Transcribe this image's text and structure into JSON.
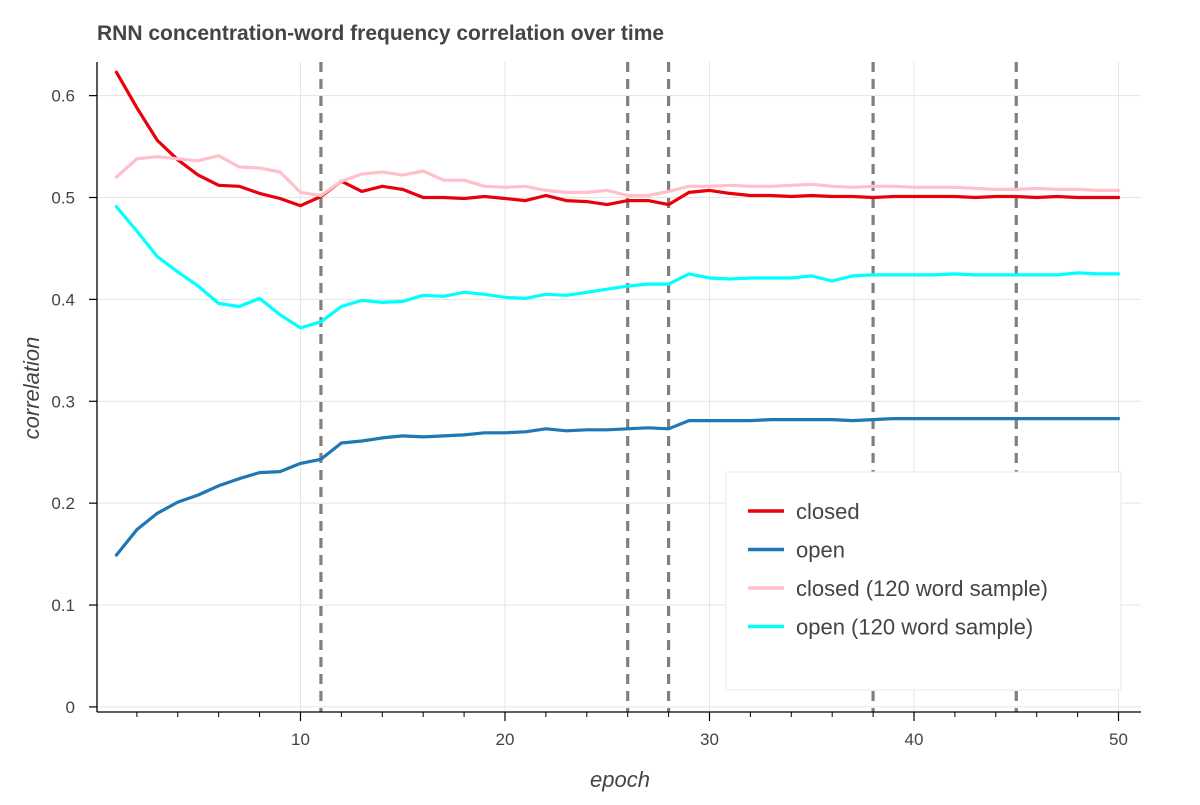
{
  "chart_data": {
    "type": "line",
    "title": "RNN concentration-word frequency correlation over time",
    "xlabel": "epoch",
    "ylabel": "correlation",
    "xlim": [
      0.05,
      51.1
    ],
    "ylim": [
      -0.005,
      0.633
    ],
    "xticks": [
      10,
      20,
      30,
      40,
      50
    ],
    "xticks_minor": [
      2,
      4,
      6,
      8,
      12,
      14,
      16,
      18,
      22,
      24,
      26,
      28,
      32,
      34,
      36,
      38,
      42,
      44,
      46,
      48
    ],
    "yticks": [
      0,
      0.1,
      0.2,
      0.3,
      0.4,
      0.5,
      0.6
    ],
    "ytick_labels": [
      "0",
      "0.1",
      "0.2",
      "0.3",
      "0.4",
      "0.5",
      "0.6"
    ],
    "grid": true,
    "legend_position": "bottom-right",
    "vlines": [
      11,
      26,
      28,
      38,
      45
    ],
    "x": [
      1,
      2,
      3,
      4,
      5,
      6,
      7,
      8,
      9,
      10,
      11,
      12,
      13,
      14,
      15,
      16,
      17,
      18,
      19,
      20,
      21,
      22,
      23,
      24,
      25,
      26,
      27,
      28,
      29,
      30,
      31,
      32,
      33,
      34,
      35,
      36,
      37,
      38,
      39,
      40,
      41,
      42,
      43,
      44,
      45,
      46,
      47,
      48,
      49,
      50
    ],
    "series": [
      {
        "name": "closed",
        "color": "#e8000b",
        "values": [
          0.623,
          0.588,
          0.556,
          0.537,
          0.522,
          0.512,
          0.511,
          0.504,
          0.499,
          0.492,
          0.501,
          0.516,
          0.506,
          0.511,
          0.508,
          0.5,
          0.5,
          0.499,
          0.501,
          0.499,
          0.497,
          0.502,
          0.497,
          0.496,
          0.493,
          0.497,
          0.497,
          0.493,
          0.505,
          0.507,
          0.504,
          0.502,
          0.502,
          0.501,
          0.502,
          0.501,
          0.501,
          0.5,
          0.501,
          0.501,
          0.501,
          0.501,
          0.5,
          0.501,
          0.501,
          0.5,
          0.501,
          0.5,
          0.5,
          0.5
        ]
      },
      {
        "name": "open",
        "color": "#1f77b4",
        "values": [
          0.149,
          0.174,
          0.19,
          0.201,
          0.208,
          0.217,
          0.224,
          0.23,
          0.231,
          0.239,
          0.243,
          0.259,
          0.261,
          0.264,
          0.266,
          0.265,
          0.266,
          0.267,
          0.269,
          0.269,
          0.27,
          0.273,
          0.271,
          0.272,
          0.272,
          0.273,
          0.274,
          0.273,
          0.281,
          0.281,
          0.281,
          0.281,
          0.282,
          0.282,
          0.282,
          0.282,
          0.281,
          0.282,
          0.283,
          0.283,
          0.283,
          0.283,
          0.283,
          0.283,
          0.283,
          0.283,
          0.283,
          0.283,
          0.283,
          0.283
        ]
      },
      {
        "name": "closed (120 word sample)",
        "color": "#ffc0cb",
        "values": [
          0.52,
          0.538,
          0.54,
          0.538,
          0.536,
          0.541,
          0.53,
          0.529,
          0.525,
          0.505,
          0.502,
          0.516,
          0.523,
          0.525,
          0.522,
          0.526,
          0.517,
          0.517,
          0.511,
          0.51,
          0.511,
          0.507,
          0.505,
          0.505,
          0.507,
          0.502,
          0.502,
          0.506,
          0.511,
          0.511,
          0.512,
          0.511,
          0.511,
          0.512,
          0.513,
          0.511,
          0.51,
          0.511,
          0.511,
          0.51,
          0.51,
          0.51,
          0.509,
          0.508,
          0.508,
          0.509,
          0.508,
          0.508,
          0.507,
          0.507
        ]
      },
      {
        "name": "open (120 word sample)",
        "color": "#00ffff",
        "values": [
          0.491,
          0.467,
          0.442,
          0.427,
          0.413,
          0.396,
          0.393,
          0.401,
          0.385,
          0.372,
          0.378,
          0.393,
          0.399,
          0.397,
          0.398,
          0.404,
          0.403,
          0.407,
          0.405,
          0.402,
          0.401,
          0.405,
          0.404,
          0.407,
          0.41,
          0.413,
          0.415,
          0.415,
          0.425,
          0.421,
          0.42,
          0.421,
          0.421,
          0.421,
          0.423,
          0.418,
          0.423,
          0.424,
          0.424,
          0.424,
          0.424,
          0.425,
          0.424,
          0.424,
          0.424,
          0.424,
          0.424,
          0.426,
          0.425,
          0.425
        ]
      }
    ]
  }
}
